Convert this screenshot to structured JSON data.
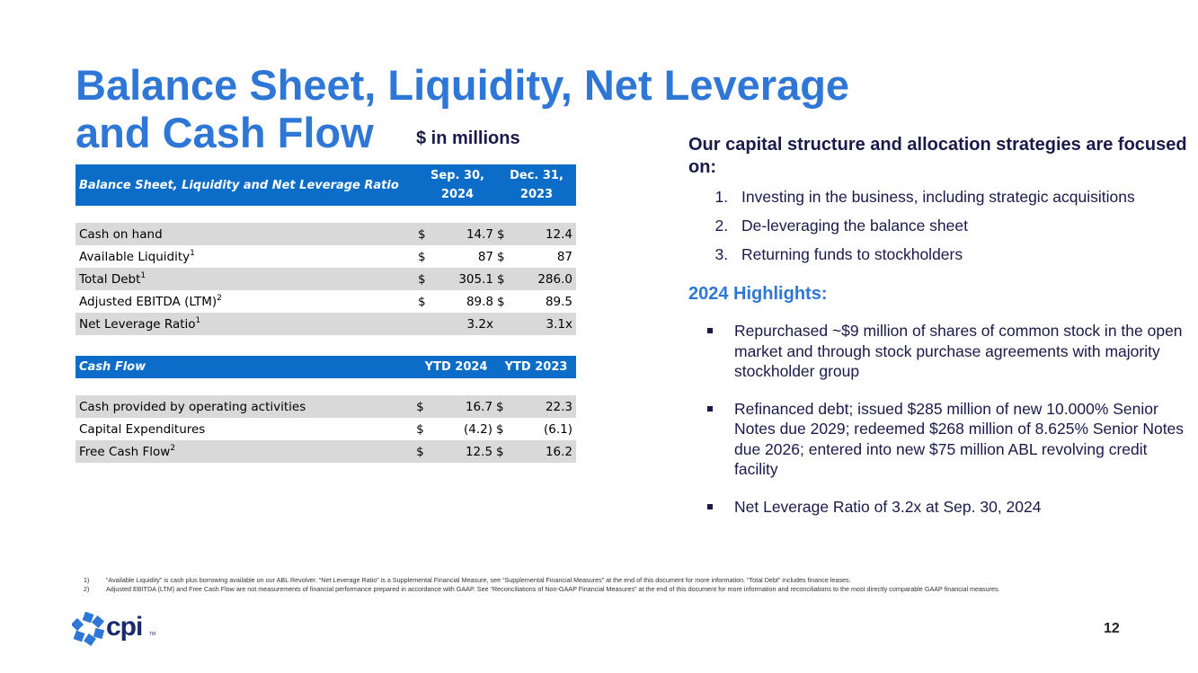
{
  "title": {
    "line1": "Balance Sheet, Liquidity, Net Leverage",
    "line2": "and Cash Flow"
  },
  "subtitle": "$ in millions",
  "balance_table": {
    "caption": "Balance Sheet, Liquidity and Net Leverage Ratio",
    "col1": {
      "line1": "Sep. 30,",
      "line2": "2024"
    },
    "col2": {
      "line1": "Dec. 31,",
      "line2": "2023"
    },
    "rows": [
      {
        "label": "Cash on hand",
        "sup": "",
        "cur1": "$",
        "val1": "14.7",
        "cur2": "$",
        "val2": "12.4"
      },
      {
        "label": "Available Liquidity",
        "sup": "1",
        "cur1": "$",
        "val1": "87",
        "cur2": "$",
        "val2": "87"
      },
      {
        "label": "Total Debt",
        "sup": "1",
        "cur1": "$",
        "val1": "305.1",
        "cur2": "$",
        "val2": "286.0"
      },
      {
        "label": "Adjusted EBITDA (LTM)",
        "sup": "2",
        "cur1": "$",
        "val1": "89.8",
        "cur2": "$",
        "val2": "89.5"
      },
      {
        "label": "Net Leverage Ratio",
        "sup": "1",
        "cur1": "",
        "val1": "3.2x",
        "cur2": "",
        "val2": "3.1x"
      }
    ]
  },
  "cashflow_table": {
    "caption": "Cash Flow",
    "col1": "YTD 2024",
    "col2": "YTD 2023",
    "rows": [
      {
        "label": "Cash provided by operating activities",
        "sup": "",
        "cur1": "$",
        "val1": "16.7",
        "cur2": "$",
        "val2": "22.3"
      },
      {
        "label": "Capital Expenditures",
        "sup": "",
        "cur1": "$",
        "val1": "(4.2)",
        "cur2": "$",
        "val2": "(6.1)"
      },
      {
        "label": "Free Cash Flow",
        "sup": "2",
        "cur1": "$",
        "val1": "12.5",
        "cur2": "$",
        "val2": "16.2"
      }
    ]
  },
  "strategy": {
    "heading": "Our capital structure and allocation strategies are focused on:",
    "items": [
      "Investing in the business, including strategic acquisitions",
      "De-leveraging the balance sheet",
      "Returning funds to stockholders"
    ]
  },
  "highlights": {
    "heading": "2024 Highlights:",
    "items": [
      "Repurchased ~$9 million of shares of common stock in the open market and through stock purchase agreements with majority stockholder group",
      "Refinanced debt; issued $285 million of new 10.000% Senior Notes due 2029; redeemed $268 million of 8.625% Senior Notes due 2026; entered into new $75 million ABL revolving credit facility",
      "Net Leverage Ratio of 3.2x at Sep. 30, 2024"
    ]
  },
  "footnotes": [
    {
      "num": "1)",
      "text": "“Available Liquidity” is cash plus borrowing available on our ABL Revolver. “Net Leverage Ratio” is a Supplemental Financial Measure, see “Supplemental Financial Measures” at the end of this document for more information.  “Total Debt” includes finance leases."
    },
    {
      "num": "2)",
      "text": "Adjusted EBITDA (LTM) and Free Cash Flow are not measurements of financial performance prepared in accordance with GAAP. See “Reconciliations of Non-GAAP Financial Measures” at the end of this document for more information and reconciliations to the most directly comparable GAAP financial measures."
    }
  ],
  "logo": {
    "text": "cpi",
    "tm": "TM"
  },
  "page_number": "12",
  "colors": {
    "title_blue": "#2f77d6",
    "header_blue": "#0b6dc7",
    "navy": "#1a1a4a",
    "row_gray": "#d9d9d9"
  }
}
